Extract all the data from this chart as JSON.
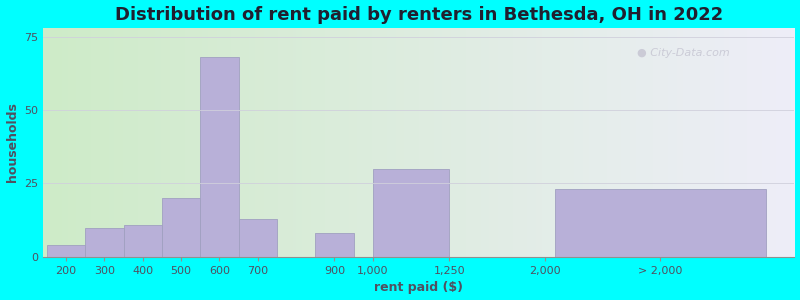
{
  "title": "Distribution of rent paid by renters in Bethesda, OH in 2022",
  "xlabel": "rent paid ($)",
  "ylabel": "households",
  "bar_heights": [
    4,
    10,
    11,
    20,
    68,
    13,
    8,
    30,
    23
  ],
  "bar_positions": [
    0.5,
    1.5,
    2.5,
    3.5,
    4.5,
    5.5,
    7.5,
    9.5,
    16.0
  ],
  "bar_widths": [
    1.0,
    1.0,
    1.0,
    1.0,
    1.0,
    1.0,
    1.0,
    2.0,
    5.5
  ],
  "tick_positions": [
    0.5,
    1.5,
    2.5,
    3.5,
    4.5,
    5.5,
    7.5,
    8.5,
    10.5,
    13.0,
    16.0
  ],
  "tick_labels": [
    "200",
    "300",
    "400",
    "500",
    "600",
    "700",
    "900",
    "1,000",
    "1,250",
    "2,000",
    "> 2,000"
  ],
  "bar_color": "#b8b0d8",
  "bar_edge_color": "#a0a0c0",
  "ylim": [
    0,
    78
  ],
  "xlim": [
    -0.1,
    19.5
  ],
  "yticks": [
    0,
    25,
    50,
    75
  ],
  "bg_grad_left": "#ceebc8",
  "bg_grad_right": "#eeeef8",
  "outer_bg": "#00ffff",
  "title_fontsize": 13,
  "axis_label_fontsize": 9,
  "tick_label_fontsize": 8,
  "watermark_text": "City-Data.com",
  "watermark_color": "#c8c8d4"
}
